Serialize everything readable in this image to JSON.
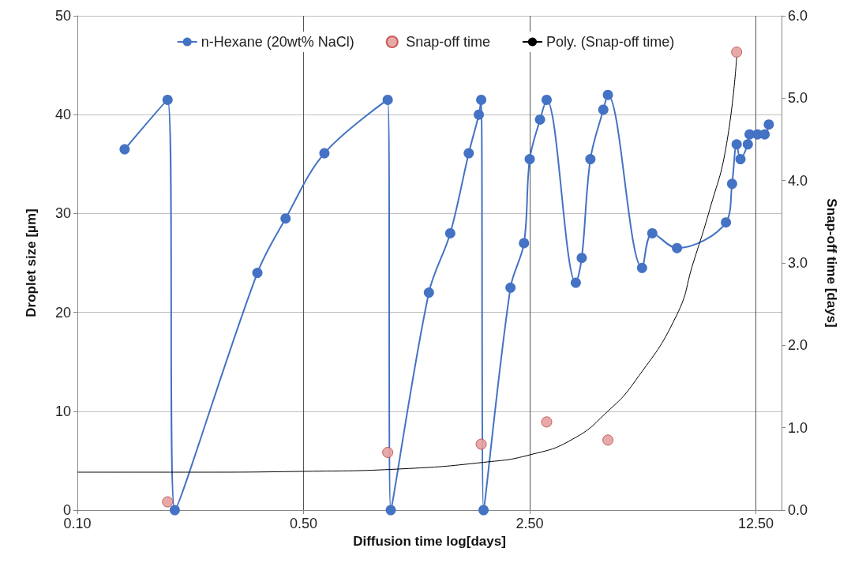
{
  "chart_data": {
    "type": "line",
    "xlabel": "Diffusion time log[days]",
    "ylabel": "Droplet size [µm]",
    "y2label": "Snap-off time [days]",
    "log": "x",
    "xlim": [
      0.1,
      15
    ],
    "xticks": [
      {
        "value": 0.1,
        "label": "0.10"
      },
      {
        "value": 0.5,
        "label": "0.50"
      },
      {
        "value": 2.5,
        "label": "2.50"
      },
      {
        "value": 12.5,
        "label": "12.50"
      }
    ],
    "ylim": [
      0,
      50
    ],
    "yticks": [
      0,
      10,
      20,
      30,
      40,
      50
    ],
    "y2lim": [
      0,
      6
    ],
    "y2ticks": [
      {
        "value": 0,
        "label": "0.0"
      },
      {
        "value": 1,
        "label": "1.0"
      },
      {
        "value": 2,
        "label": "2.0"
      },
      {
        "value": 3,
        "label": "3.0"
      },
      {
        "value": 4,
        "label": "4.0"
      },
      {
        "value": 5,
        "label": "5.0"
      },
      {
        "value": 6,
        "label": "6.0"
      }
    ],
    "grid": true,
    "legend": "top",
    "series": [
      {
        "name": "n-Hexane (20wt% NaCl)",
        "color": "#4472c4",
        "marker": "circle",
        "x": [
          0.14,
          0.19,
          0.2,
          0.36,
          0.44,
          0.58,
          0.91,
          0.93,
          1.22,
          1.42,
          1.62,
          1.74,
          1.77,
          1.8,
          2.18,
          2.4,
          2.5,
          2.69,
          2.82,
          3.47,
          3.62,
          3.85,
          4.22,
          4.36,
          5.56,
          5.98,
          7.13,
          10.1,
          10.55,
          10.9,
          11.2,
          11.8,
          11.95,
          12.64,
          13.3,
          13.7
        ],
        "values": [
          36.5,
          41.5,
          0,
          24,
          29.5,
          36.1,
          41.5,
          0,
          22,
          28,
          36.1,
          40,
          41.5,
          0,
          22.5,
          27,
          35.5,
          39.5,
          41.5,
          23,
          25.5,
          35.5,
          40.5,
          42,
          24.5,
          28,
          26.5,
          29.1,
          33,
          37,
          35.5,
          37,
          38,
          38,
          38,
          39
        ]
      },
      {
        "name": "Snap-off time",
        "type": "scatter",
        "axis": "y2",
        "color": "#e6a0a0",
        "marker": "circle",
        "x": [
          0.19,
          0.91,
          1.77,
          2.82,
          4.36,
          10.9
        ],
        "values": [
          0.1,
          0.7,
          0.8,
          1.07,
          0.85,
          5.56
        ]
      },
      {
        "name": "Poly. (Snap-off time)",
        "type": "line",
        "axis": "y2",
        "color": "#000000",
        "marker": "none",
        "x": [
          0.1,
          0.224,
          0.5,
          1.0,
          1.8,
          2.5,
          3.39,
          4.36,
          5.3,
          7.1,
          8.0,
          9.0,
          10.1,
          10.9
        ],
        "values": [
          0.46,
          0.46,
          0.47,
          0.5,
          0.58,
          0.67,
          0.86,
          1.2,
          1.57,
          2.36,
          3.0,
          3.65,
          4.4,
          5.5
        ]
      }
    ]
  }
}
